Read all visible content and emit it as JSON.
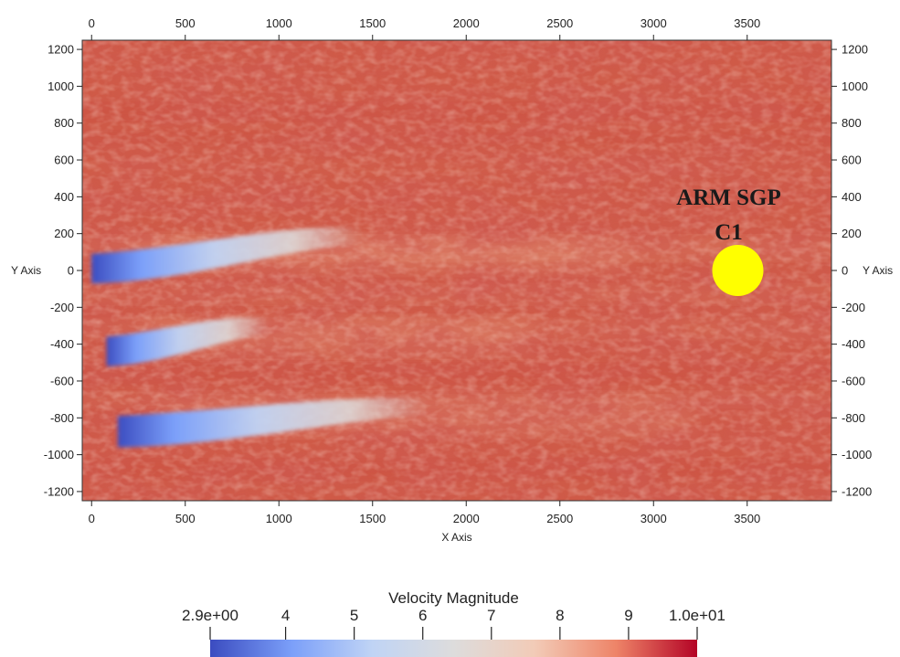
{
  "chart_data": {
    "type": "heatmap",
    "title": "",
    "xlabel": "X Axis",
    "ylabel": "Y Axis",
    "xlim": [
      -50,
      3950
    ],
    "ylim": [
      -1250,
      1250
    ],
    "x_ticks": [
      0,
      500,
      1000,
      1500,
      2000,
      2500,
      3000,
      3500
    ],
    "y_ticks": [
      1200,
      1000,
      800,
      600,
      400,
      200,
      0,
      -200,
      -400,
      -600,
      -800,
      -1000,
      -1200
    ],
    "colorbar": {
      "title": "Velocity Magnitude",
      "range": [
        2.9,
        10.0
      ],
      "tick_values": [
        2.9,
        4,
        5,
        6,
        7,
        8,
        9,
        10.0
      ],
      "tick_labels": [
        "2.9e+00",
        "4",
        "5",
        "6",
        "7",
        "8",
        "9",
        "1.0e+01"
      ],
      "colormap": [
        "#3b4cc0",
        "#7b9ff9",
        "#c0d4f5",
        "#dddcdc",
        "#f2cbb7",
        "#ee8468",
        "#b40426"
      ]
    },
    "wakes": [
      {
        "turbine_x": 0,
        "turbine_y": 0,
        "y_extent": [
          -70,
          90
        ],
        "end_x": 1450,
        "end_y": 190
      },
      {
        "turbine_x": 80,
        "turbine_y": -440,
        "y_extent": [
          -520,
          -360
        ],
        "end_x": 950,
        "end_y": -300
      },
      {
        "turbine_x": 140,
        "turbine_y": -880,
        "y_extent": [
          -960,
          -790
        ],
        "end_x": 1800,
        "end_y": -740
      }
    ],
    "background_colors": [
      "#cf5a47",
      "#d2604c",
      "#c94a3d",
      "#d66a55",
      "#e08b71"
    ],
    "annotations": [
      {
        "text_lines": [
          "ARM SGP",
          "C1"
        ],
        "x": 3450,
        "y": 0,
        "marker": "circle",
        "marker_color": "#ffff00"
      }
    ]
  }
}
